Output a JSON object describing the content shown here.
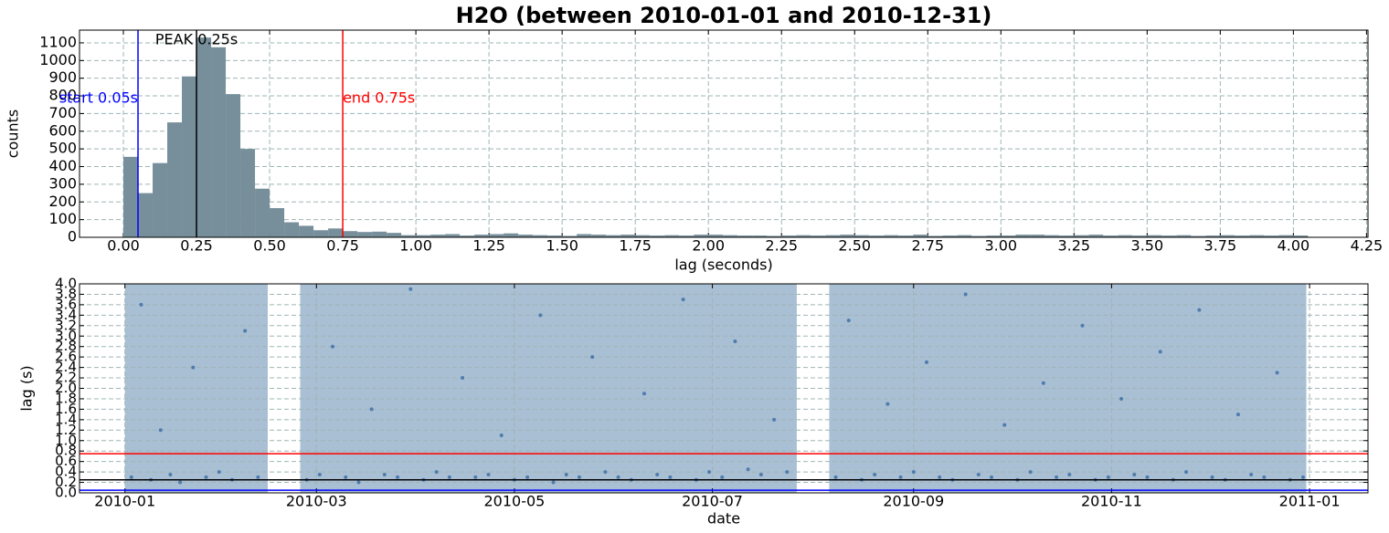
{
  "chart_data": [
    {
      "type": "histogram",
      "title": "H2O (between 2010-01-01 and 2010-12-31)",
      "xlabel": "lag (seconds)",
      "ylabel": "counts",
      "color": "#778f9b",
      "grid": true,
      "bins": [
        0,
        0.05,
        0.1,
        0.15,
        0.2,
        0.25,
        0.3,
        0.35,
        0.4,
        0.45,
        0.5,
        0.55,
        0.6,
        0.65,
        0.7,
        0.75,
        0.8,
        0.85,
        0.9,
        0.95,
        1,
        1.05,
        1.1,
        1.15,
        1.2,
        1.25,
        1.3,
        1.35,
        1.4,
        1.45,
        1.5,
        1.55,
        1.6,
        1.65,
        1.7,
        1.75,
        1.8,
        1.85,
        1.9,
        1.95,
        2,
        2.05,
        2.1,
        2.15,
        2.2,
        2.25,
        2.3,
        2.35,
        2.4,
        2.45,
        2.5,
        2.55,
        2.6,
        2.65,
        2.7,
        2.75,
        2.8,
        2.85,
        2.9,
        2.95,
        3,
        3.05,
        3.1,
        3.15,
        3.2,
        3.25,
        3.3,
        3.35,
        3.4,
        3.45,
        3.5,
        3.55,
        3.6,
        3.65,
        3.7,
        3.75,
        3.8,
        3.85,
        3.9,
        3.95,
        4,
        4.05
      ],
      "counts": [
        455,
        250,
        420,
        650,
        910,
        1130,
        1075,
        810,
        500,
        275,
        165,
        85,
        65,
        40,
        50,
        35,
        30,
        32,
        25,
        12,
        12,
        15,
        18,
        10,
        15,
        18,
        22,
        15,
        12,
        10,
        8,
        18,
        15,
        12,
        15,
        12,
        10,
        12,
        10,
        15,
        15,
        12,
        10,
        10,
        8,
        10,
        12,
        10,
        12,
        15,
        12,
        10,
        12,
        10,
        15,
        8,
        10,
        12,
        8,
        10,
        10,
        15,
        15,
        12,
        10,
        12,
        15,
        10,
        12,
        10,
        12,
        10,
        12,
        8,
        10,
        12,
        10,
        12,
        10,
        12,
        10
      ],
      "xlim": [
        -0.15,
        4.255
      ],
      "ylim": [
        0,
        1172
      ],
      "xticks": [
        {
          "value": 0,
          "label": "0.00"
        },
        0.25,
        {
          "value": 0.5,
          "label": "0.50"
        },
        0.75,
        {
          "value": 1,
          "label": "1.00"
        },
        1.25,
        {
          "value": 1.5,
          "label": "1.50"
        },
        1.75,
        {
          "value": 2,
          "label": "2.00"
        },
        2.25,
        {
          "value": 2.5,
          "label": "2.50"
        },
        2.75,
        {
          "value": 3,
          "label": "3.00"
        },
        3.25,
        {
          "value": 3.5,
          "label": "3.50"
        },
        3.75,
        {
          "value": 4,
          "label": "4.00"
        },
        4.25
      ],
      "yticks": [
        0,
        100,
        200,
        300,
        400,
        500,
        600,
        700,
        800,
        900,
        1000,
        1100
      ],
      "markers": [
        {
          "label": "start 0.05s",
          "value": 0.05,
          "color": "#0000ff"
        },
        {
          "label": "end 0.75s",
          "value": 0.75,
          "color": "#ff0000"
        },
        {
          "label": "PEAK 0.25s",
          "value": 0.25,
          "color": "#000000"
        }
      ]
    },
    {
      "type": "scatter",
      "xlabel": "date",
      "ylabel": "lag (s)",
      "color": "#4f7cac",
      "band_color": "#a9bfd4",
      "grid": true,
      "coverage": [
        [
          "2010-01-01",
          "2010-02-14"
        ],
        [
          "2010-02-24",
          "2010-07-27"
        ],
        [
          "2010-08-06",
          "2010-12-31"
        ]
      ],
      "x": [
        "2010-01-03",
        "2010-01-06",
        "2010-01-09",
        "2010-01-12",
        "2010-01-15",
        "2010-01-18",
        "2010-01-22",
        "2010-01-26",
        "2010-01-30",
        "2010-02-03",
        "2010-02-07",
        "2010-02-11",
        "2010-02-26",
        "2010-03-02",
        "2010-03-06",
        "2010-03-10",
        "2010-03-14",
        "2010-03-18",
        "2010-03-22",
        "2010-03-26",
        "2010-03-30",
        "2010-04-03",
        "2010-04-07",
        "2010-04-11",
        "2010-04-15",
        "2010-04-19",
        "2010-04-23",
        "2010-04-27",
        "2010-05-01",
        "2010-05-05",
        "2010-05-09",
        "2010-05-13",
        "2010-05-17",
        "2010-05-21",
        "2010-05-25",
        "2010-05-29",
        "2010-06-02",
        "2010-06-06",
        "2010-06-10",
        "2010-06-14",
        "2010-06-18",
        "2010-06-22",
        "2010-06-26",
        "2010-06-30",
        "2010-07-04",
        "2010-07-08",
        "2010-07-12",
        "2010-07-16",
        "2010-07-20",
        "2010-07-24",
        "2010-08-08",
        "2010-08-12",
        "2010-08-16",
        "2010-08-20",
        "2010-08-24",
        "2010-08-28",
        "2010-09-01",
        "2010-09-05",
        "2010-09-09",
        "2010-09-13",
        "2010-09-17",
        "2010-09-21",
        "2010-09-25",
        "2010-09-29",
        "2010-10-03",
        "2010-10-07",
        "2010-10-11",
        "2010-10-15",
        "2010-10-19",
        "2010-10-23",
        "2010-10-27",
        "2010-10-31",
        "2010-11-04",
        "2010-11-08",
        "2010-11-12",
        "2010-11-16",
        "2010-11-20",
        "2010-11-24",
        "2010-11-28",
        "2010-12-02",
        "2010-12-06",
        "2010-12-10",
        "2010-12-14",
        "2010-12-18",
        "2010-12-22",
        "2010-12-26",
        "2010-12-30"
      ],
      "y": [
        0.3,
        3.6,
        0.25,
        1.2,
        0.35,
        0.2,
        2.4,
        0.3,
        0.4,
        0.25,
        3.1,
        0.3,
        0.25,
        0.35,
        2.8,
        0.3,
        0.2,
        1.6,
        0.35,
        0.3,
        3.9,
        0.25,
        0.4,
        0.3,
        2.2,
        0.3,
        0.35,
        1.1,
        0.25,
        0.3,
        3.4,
        0.2,
        0.35,
        0.3,
        2.6,
        0.4,
        0.3,
        0.25,
        1.9,
        0.35,
        0.3,
        3.7,
        0.25,
        0.4,
        0.3,
        2.9,
        0.45,
        0.35,
        1.4,
        0.4,
        0.3,
        3.3,
        0.25,
        0.35,
        1.7,
        0.3,
        0.4,
        2.5,
        0.3,
        0.25,
        3.8,
        0.35,
        0.3,
        1.3,
        0.25,
        0.4,
        2.1,
        0.3,
        0.35,
        3.2,
        0.25,
        0.3,
        1.8,
        0.35,
        0.3,
        2.7,
        0.25,
        0.4,
        3.5,
        0.3,
        0.25,
        1.5,
        0.35,
        0.3,
        2.3,
        0.25,
        0.3
      ],
      "xlim": [
        "2009-12-18",
        "2011-01-19"
      ],
      "ylim": [
        0,
        4
      ],
      "xticks": [
        {
          "value": "2010-01-01",
          "label": "2010-01"
        },
        {
          "value": "2010-03-01",
          "label": "2010-03"
        },
        {
          "value": "2010-05-01",
          "label": "2010-05"
        },
        {
          "value": "2010-07-01",
          "label": "2010-07"
        },
        {
          "value": "2010-09-01",
          "label": "2010-09"
        },
        {
          "value": "2010-11-01",
          "label": "2010-11"
        },
        {
          "value": "2011-01-01",
          "label": "2011-01"
        }
      ],
      "yticks": [
        {
          "value": 0,
          "label": "0.0"
        },
        0.2,
        0.4,
        0.6,
        0.8,
        {
          "value": 1,
          "label": "1.0"
        },
        1.2,
        1.4,
        1.6,
        1.8,
        {
          "value": 2,
          "label": "2.0"
        },
        2.2,
        2.4,
        2.6,
        2.8,
        {
          "value": 3,
          "label": "3.0"
        },
        3.2,
        3.4,
        3.6,
        3.8,
        {
          "value": 4,
          "label": "4.0"
        }
      ],
      "hlines": [
        {
          "value": 0.75,
          "color": "#ff0000"
        },
        {
          "value": 0.25,
          "color": "#000000"
        },
        {
          "value": 0.05,
          "color": "#0000ff"
        }
      ]
    }
  ]
}
